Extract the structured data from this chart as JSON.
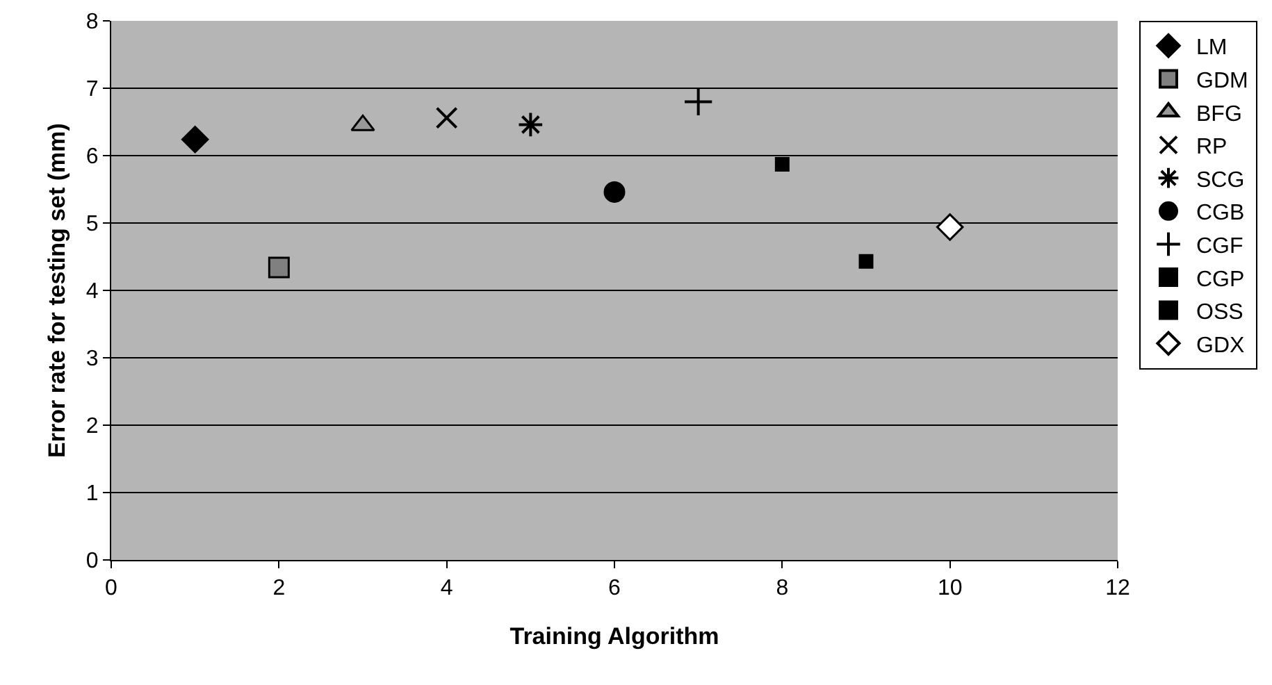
{
  "chart_data": {
    "type": "scatter",
    "xlabel": "Training Algorithm",
    "ylabel": "Error rate for testing set (mm)",
    "xlim": [
      0,
      12
    ],
    "xticks": [
      0,
      2,
      4,
      6,
      8,
      10,
      12
    ],
    "ylim": [
      0,
      8
    ],
    "yticks": [
      0,
      1,
      2,
      3,
      4,
      5,
      6,
      7,
      8
    ],
    "grid": "y",
    "legend": "right",
    "series": [
      {
        "name": "LM",
        "color": "#000000",
        "marker": "diamond",
        "x": [
          1
        ],
        "values": [
          6.24
        ]
      },
      {
        "name": "GDM",
        "color": "#808080",
        "marker": "square",
        "x": [
          2
        ],
        "values": [
          4.34
        ]
      },
      {
        "name": "BFG",
        "color": "#999999",
        "marker": "triangle",
        "x": [
          3
        ],
        "values": [
          6.45
        ]
      },
      {
        "name": "RP",
        "color": "#000000",
        "marker": "x",
        "x": [
          4
        ],
        "values": [
          6.56
        ]
      },
      {
        "name": "SCG",
        "color": "#000000",
        "marker": "cross",
        "x": [
          5
        ],
        "values": [
          6.46
        ]
      },
      {
        "name": "CGB",
        "color": "#000000",
        "marker": "circle",
        "x": [
          6
        ],
        "values": [
          5.46
        ]
      },
      {
        "name": "CGF",
        "color": "#000000",
        "marker": "plus",
        "x": [
          7
        ],
        "values": [
          6.8
        ]
      },
      {
        "name": "CGP",
        "color": "#000000",
        "marker": "square",
        "x": [
          8
        ],
        "values": [
          5.87
        ]
      },
      {
        "name": "OSS",
        "color": "#000000",
        "marker": "square",
        "x": [
          9
        ],
        "values": [
          4.43
        ]
      },
      {
        "name": "GDX",
        "color": "#ffffff",
        "marker": "diamond",
        "x": [
          10
        ],
        "values": [
          4.94
        ]
      }
    ]
  }
}
